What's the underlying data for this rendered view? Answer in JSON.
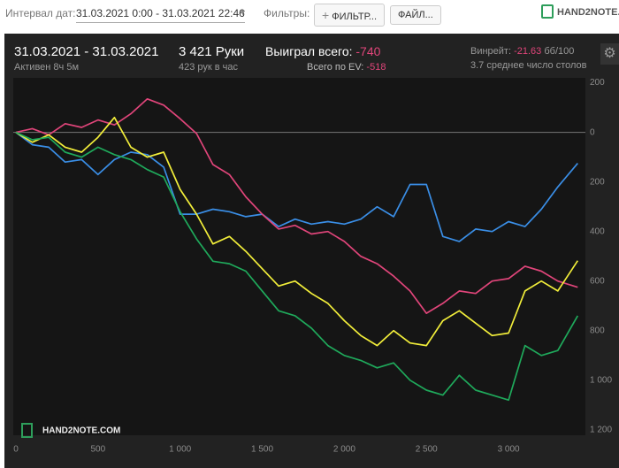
{
  "toolbar": {
    "date_label": "Интервал дат:",
    "date_range": "31.03.2021 0:00 - 31.03.2021 22:46",
    "filters_label": "Фильтры:",
    "filter_plus": "+",
    "filter_button": "ФИЛЬТР...",
    "file_button": "ФАЙЛ...",
    "logo": "HAND2NOTE.C"
  },
  "stats": {
    "period": "31.03.2021 - 31.03.2021",
    "active": "Активен 8ч 5м",
    "hands": "3 421 Руки",
    "hands_per_hour": "423 рук в час",
    "won_label": "Выиграл всего:",
    "won_value": "-740",
    "ev_label": "Всего по EV:",
    "ev_value": "-518",
    "winrate_label": "Винрейт:",
    "winrate_value": "-21.63",
    "winrate_unit": "бб/100",
    "tables": "3.7 среднее число столов"
  },
  "watermark": "HAND2NOTE.COM",
  "chart_data": {
    "type": "line",
    "xlim": [
      0,
      3460
    ],
    "ylim": [
      -1215,
      220
    ],
    "xticks": [
      0,
      500,
      {
        "value": 1000,
        "label": "1 000"
      },
      {
        "value": 1500,
        "label": "1 500"
      },
      {
        "value": 2000,
        "label": "2 000"
      },
      {
        "value": 2500,
        "label": "2 500"
      },
      {
        "value": 3000,
        "label": "3 000"
      }
    ],
    "yticks": [
      200,
      0,
      {
        "value": -200,
        "label": "200"
      },
      {
        "value": -400,
        "label": "400"
      },
      {
        "value": -600,
        "label": "600"
      },
      {
        "value": -800,
        "label": "800"
      },
      {
        "value": -1000,
        "label": "1 000"
      },
      {
        "value": -1200,
        "label": "1 200"
      }
    ],
    "zero_line": true,
    "series": [
      {
        "color": "#3a8ee6",
        "x": [
          0,
          100,
          200,
          300,
          400,
          500,
          600,
          700,
          800,
          900,
          1000,
          1100,
          1200,
          1300,
          1400,
          1500,
          1600,
          1700,
          1800,
          1900,
          2000,
          2100,
          2200,
          2300,
          2400,
          2500,
          2600,
          2700,
          2800,
          2900,
          3000,
          3100,
          3200,
          3300,
          3421
        ],
        "values": [
          0,
          -50,
          -60,
          -120,
          -110,
          -170,
          -110,
          -80,
          -90,
          -140,
          -330,
          -330,
          -310,
          -320,
          -340,
          -330,
          -380,
          -350,
          -370,
          -360,
          -370,
          -350,
          -300,
          -340,
          -210,
          -210,
          -420,
          -440,
          -390,
          -400,
          -360,
          -380,
          -310,
          -220,
          -125
        ]
      },
      {
        "color": "#e0457a",
        "x": [
          0,
          100,
          200,
          300,
          400,
          500,
          600,
          700,
          800,
          900,
          1000,
          1100,
          1200,
          1300,
          1400,
          1500,
          1600,
          1700,
          1800,
          1900,
          2000,
          2100,
          2200,
          2300,
          2400,
          2500,
          2600,
          2700,
          2800,
          2900,
          3000,
          3100,
          3200,
          3300,
          3421
        ],
        "values": [
          0,
          15,
          -10,
          35,
          20,
          50,
          30,
          75,
          135,
          110,
          55,
          -5,
          -130,
          -170,
          -260,
          -330,
          -390,
          -375,
          -410,
          -400,
          -440,
          -500,
          -530,
          -580,
          -640,
          -730,
          -690,
          -640,
          -650,
          -600,
          -590,
          -540,
          -560,
          -600,
          -625
        ]
      },
      {
        "color": "#f2ee3a",
        "x": [
          0,
          100,
          200,
          300,
          400,
          500,
          600,
          700,
          800,
          900,
          1000,
          1100,
          1200,
          1300,
          1400,
          1500,
          1600,
          1700,
          1800,
          1900,
          2000,
          2100,
          2200,
          2300,
          2400,
          2500,
          2600,
          2700,
          2800,
          2900,
          3000,
          3100,
          3200,
          3300,
          3421
        ],
        "values": [
          0,
          -40,
          -10,
          -60,
          -80,
          -20,
          60,
          -60,
          -100,
          -80,
          -230,
          -330,
          -450,
          -420,
          -480,
          -550,
          -620,
          -600,
          -650,
          -690,
          -760,
          -820,
          -860,
          -800,
          -850,
          -860,
          -760,
          -720,
          -770,
          -820,
          -810,
          -640,
          -600,
          -640,
          -518
        ]
      },
      {
        "color": "#1fa95b",
        "x": [
          0,
          100,
          200,
          300,
          400,
          500,
          600,
          700,
          800,
          900,
          1000,
          1100,
          1200,
          1300,
          1400,
          1500,
          1600,
          1700,
          1800,
          1900,
          2000,
          2100,
          2200,
          2300,
          2400,
          2500,
          2600,
          2700,
          2800,
          2900,
          3000,
          3100,
          3200,
          3300,
          3421
        ],
        "values": [
          0,
          -30,
          -20,
          -80,
          -100,
          -60,
          -90,
          -110,
          -150,
          -180,
          -320,
          -430,
          -520,
          -530,
          -560,
          -640,
          -720,
          -740,
          -790,
          -860,
          -900,
          -920,
          -950,
          -930,
          -1000,
          -1040,
          -1060,
          -980,
          -1040,
          -1060,
          -1080,
          -860,
          -900,
          -880,
          -740
        ]
      }
    ]
  }
}
